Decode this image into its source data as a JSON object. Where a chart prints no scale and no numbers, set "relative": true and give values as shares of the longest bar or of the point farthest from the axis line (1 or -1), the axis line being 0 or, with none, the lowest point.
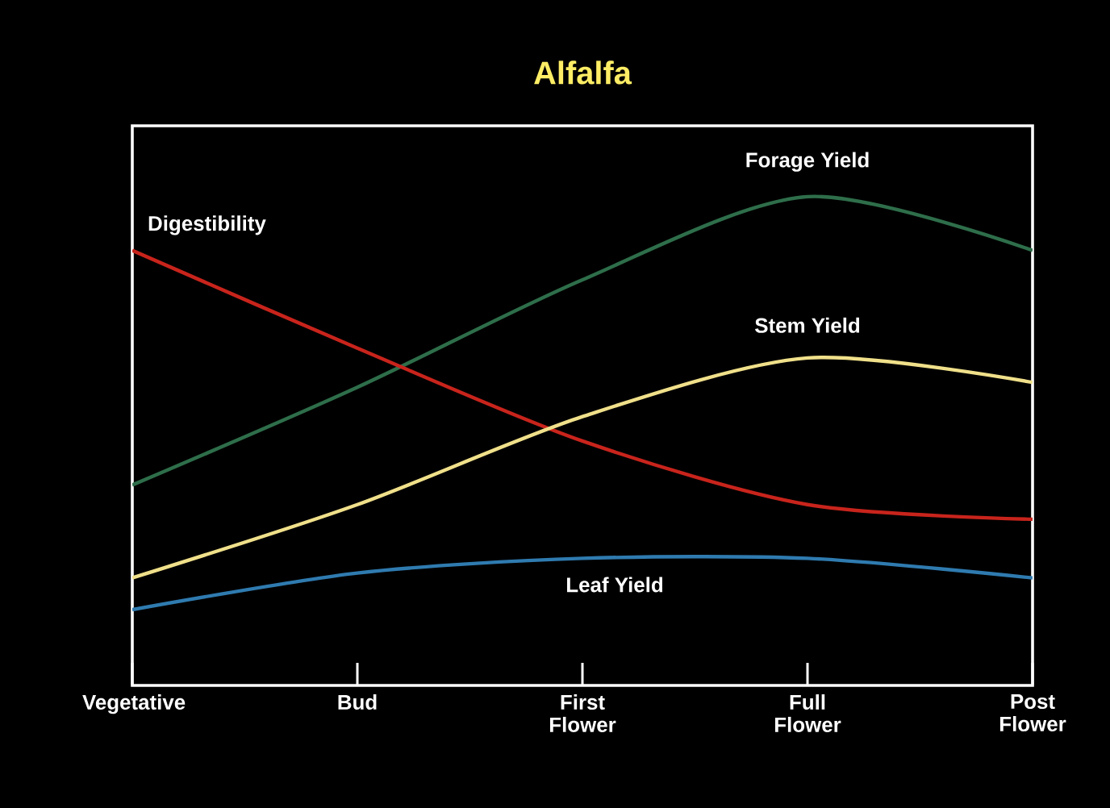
{
  "chart_data": {
    "type": "line",
    "title": "Alfalfa",
    "relative": true,
    "legend": false,
    "marker": "none",
    "line_style": "solid",
    "categories": [
      "Vegetative",
      "Bud",
      "First Flower",
      "Full Flower",
      "Post Flower"
    ],
    "series": [
      {
        "name": "Forage Yield",
        "color": "#2e6e4a",
        "values": [
          0.41,
          0.61,
          0.83,
          1,
          0.89
        ]
      },
      {
        "name": "Digestibility",
        "color": "#c8241c",
        "values": [
          0.89,
          0.69,
          0.5,
          0.37,
          0.34
        ]
      },
      {
        "name": "Stem Yield",
        "color": "#f0e08a",
        "values": [
          0.22,
          0.37,
          0.55,
          0.67,
          0.62
        ]
      },
      {
        "name": "Leaf Yield",
        "color": "#2f7bb0",
        "values": [
          0.155,
          0.23,
          0.26,
          0.26,
          0.22
        ]
      }
    ]
  }
}
